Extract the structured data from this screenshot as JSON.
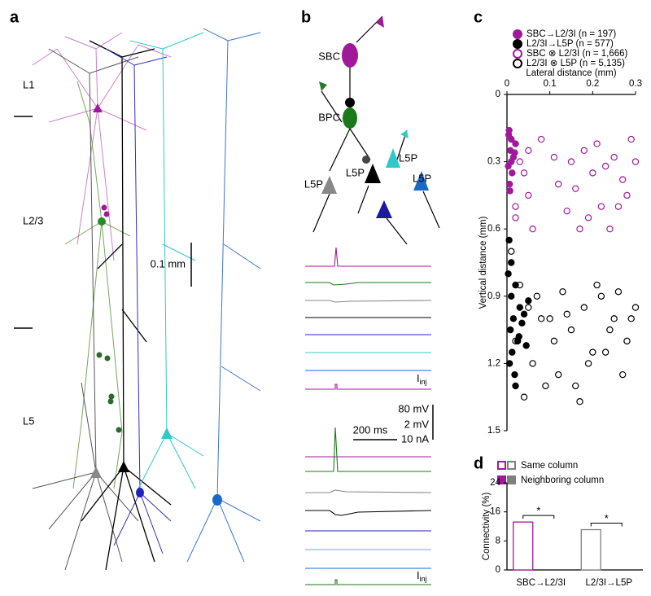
{
  "panel_labels": [
    "a",
    "b",
    "c",
    "d"
  ],
  "panel_a": {
    "layers": [
      "L1",
      "L2/3",
      "L5"
    ],
    "scale_bar": "0.1 mm"
  },
  "panel_b": {
    "cells": [
      "SBC",
      "BPC",
      "L5P",
      "L5P",
      "L5P",
      "L5P"
    ],
    "scale_labels": [
      "80 mV",
      "2 mV",
      "10 nA",
      "200 ms"
    ],
    "current_label": {
      "main": "I",
      "sub": "inj"
    }
  },
  "chart_data": [
    {
      "type": "scatter",
      "x_label": "Lateral distance (mm)",
      "y_label": "Vertical distance (mm)",
      "xlim": [
        0,
        0.3
      ],
      "xticks": [
        0,
        0.1,
        0.2,
        0.3
      ],
      "ylim": [
        0,
        1.5
      ],
      "yticks": [
        0,
        0.3,
        0.6,
        0.9,
        1.2,
        1.5
      ],
      "y_inverted": true,
      "series": [
        {
          "name": "SBC→L2/3I (n = 197)",
          "color": "#a0199b",
          "marker": "filled",
          "x": [
            0.005,
            0.01,
            0.008,
            0.015,
            0.003,
            0.012,
            0.02,
            0.006,
            0.01,
            0.004,
            0.018,
            0.007
          ],
          "values": [
            0.16,
            0.2,
            0.25,
            0.28,
            0.32,
            0.35,
            0.22,
            0.4,
            0.3,
            0.18,
            0.26,
            0.43
          ]
        },
        {
          "name": "L2/3I→L5P (n = 577)",
          "color": "#000000",
          "marker": "filled",
          "x": [
            0.005,
            0.01,
            0.02,
            0.03,
            0.015,
            0.008,
            0.04,
            0.025,
            0.012,
            0.035,
            0.05,
            0.006,
            0.018,
            0.028,
            0.01,
            0.045,
            0.02,
            0.003
          ],
          "values": [
            0.65,
            0.75,
            0.85,
            0.95,
            1.0,
            1.05,
            0.98,
            1.1,
            1.15,
            1.02,
            0.92,
            1.2,
            1.25,
            1.08,
            0.9,
            1.12,
            1.3,
            0.8
          ]
        },
        {
          "name": "SBC ⊗ L2/3I (n = 1,666)",
          "color": "#a0199b",
          "marker": "open",
          "x": [
            0.01,
            0.03,
            0.05,
            0.02,
            0.08,
            0.12,
            0.15,
            0.18,
            0.2,
            0.22,
            0.25,
            0.28,
            0.3,
            0.14,
            0.17,
            0.21,
            0.24,
            0.27,
            0.04,
            0.06,
            0.16,
            0.19,
            0.23,
            0.26,
            0.29,
            0.11,
            0.02,
            0.05
          ],
          "values": [
            0.2,
            0.3,
            0.45,
            0.55,
            0.2,
            0.4,
            0.3,
            0.25,
            0.35,
            0.5,
            0.28,
            0.45,
            0.3,
            0.52,
            0.6,
            0.22,
            0.6,
            0.38,
            0.35,
            0.6,
            0.42,
            0.55,
            0.32,
            0.5,
            0.2,
            0.28,
            0.5,
            0.25
          ]
        },
        {
          "name": "L2/3I ⊗ L5P (n = 5,135)",
          "color": "#000000",
          "marker": "open",
          "x": [
            0.01,
            0.03,
            0.05,
            0.02,
            0.07,
            0.1,
            0.13,
            0.15,
            0.18,
            0.2,
            0.22,
            0.25,
            0.28,
            0.3,
            0.12,
            0.16,
            0.19,
            0.21,
            0.24,
            0.27,
            0.04,
            0.06,
            0.09,
            0.14,
            0.23,
            0.26,
            0.29,
            0.08,
            0.11,
            0.17
          ],
          "values": [
            0.7,
            0.85,
            0.95,
            1.1,
            0.9,
            1.0,
            0.88,
            1.05,
            0.95,
            1.15,
            0.9,
            1.0,
            1.1,
            0.95,
            1.25,
            1.3,
            1.2,
            0.85,
            1.05,
            1.25,
            1.35,
            1.2,
            1.3,
            0.98,
            1.15,
            0.88,
            1.0,
            1.0,
            1.1,
            1.37
          ]
        }
      ]
    },
    {
      "type": "bar",
      "y_label": "Connectivity (%)",
      "categories": [
        "SBC→L2/3I",
        "L2/3I→L5P"
      ],
      "colors": [
        "#a0199b",
        "#808080"
      ],
      "ylim": [
        0,
        24
      ],
      "yticks": [
        0,
        8,
        16,
        24
      ],
      "series": [
        {
          "name": "Same column",
          "marker": "open",
          "values": [
            13.2,
            11.1
          ]
        },
        {
          "name": "Neighboring column",
          "marker": "filled",
          "values": [
            0,
            0
          ]
        }
      ],
      "annotations": [
        "*",
        "*"
      ]
    }
  ]
}
